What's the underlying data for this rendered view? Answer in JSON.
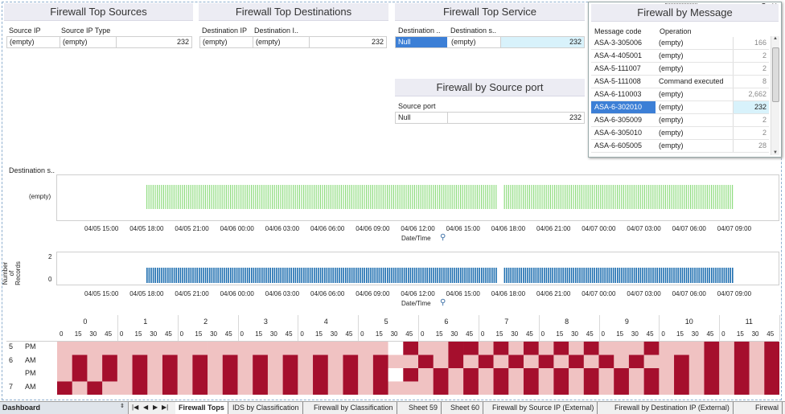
{
  "panels": {
    "top_sources": {
      "title": "Firewall Top Sources",
      "headers": [
        "Source IP",
        "Source IP Type"
      ],
      "row": {
        "c1": "(empty)",
        "c2": "(empty)",
        "value": "232"
      }
    },
    "top_destinations": {
      "title": "Firewall Top Destinations",
      "headers": [
        "Destination IP",
        "Destination I.."
      ],
      "row": {
        "c1": "(empty)",
        "c2": "(empty)",
        "value": "232"
      }
    },
    "top_service": {
      "title": "Firewall Top Service",
      "headers": [
        "Destination ..",
        "Destination s.."
      ],
      "row": {
        "c1": "Null",
        "c2": "(empty)",
        "value": "232"
      }
    },
    "source_port": {
      "title": "Firewall by Source port",
      "headers": [
        "Source port"
      ],
      "row": {
        "c1": "Null",
        "value": "232"
      }
    },
    "by_message": {
      "title": "Firewall by Message",
      "headers": [
        "Message code",
        "Operation"
      ],
      "rows": [
        {
          "code": "ASA-3-305006",
          "op": "(empty)",
          "value": "166"
        },
        {
          "code": "ASA-4-405001",
          "op": "(empty)",
          "value": "2"
        },
        {
          "code": "ASA-5-111007",
          "op": "(empty)",
          "value": "2"
        },
        {
          "code": "ASA-5-111008",
          "op": "Command executed",
          "value": "8"
        },
        {
          "code": "ASA-6-110003",
          "op": "(empty)",
          "value": "2,662"
        },
        {
          "code": "ASA-6-302010",
          "op": "(empty)",
          "value": "232"
        },
        {
          "code": "ASA-6-305009",
          "op": "(empty)",
          "value": "2"
        },
        {
          "code": "ASA-6-305010",
          "op": "(empty)",
          "value": "2"
        },
        {
          "code": "ASA-6-605005",
          "op": "(empty)",
          "value": "28"
        }
      ],
      "selected_index": 5
    }
  },
  "timeline": {
    "header": "Destination s..",
    "row_label": "(empty)",
    "ticks": [
      "04/05 15:00",
      "04/05 18:00",
      "04/05 21:00",
      "04/06 00:00",
      "04/06 03:00",
      "04/06 06:00",
      "04/06 09:00",
      "04/06 12:00",
      "04/06 15:00",
      "04/06 18:00",
      "04/06 21:00",
      "04/07 00:00",
      "04/07 03:00",
      "04/07 06:00",
      "04/07 09:00"
    ],
    "xlabel": "Date/Time",
    "bar_color": "#8fdc7f"
  },
  "records": {
    "ylabel_lines": [
      "Number",
      "of",
      "Records"
    ],
    "yticks": [
      "2",
      "0"
    ],
    "ticks": [
      "04/05 15:00",
      "04/05 18:00",
      "04/05 21:00",
      "04/06 00:00",
      "04/06 03:00",
      "04/06 06:00",
      "04/06 09:00",
      "04/06 12:00",
      "04/06 15:00",
      "04/06 18:00",
      "04/06 21:00",
      "04/07 00:00",
      "04/07 03:00",
      "04/07 06:00",
      "04/07 09:00"
    ],
    "xlabel": "Date/Time",
    "bar_color": "#1f6fb0"
  },
  "heatmap": {
    "hours": [
      "0",
      "1",
      "2",
      "3",
      "4",
      "5",
      "6",
      "7",
      "8",
      "9",
      "10",
      "11"
    ],
    "minutes": [
      "0",
      "15",
      "30",
      "45"
    ],
    "row_labels": [
      {
        "hour": "5",
        "ampm": "PM"
      },
      {
        "hour": "6",
        "ampm": "AM"
      },
      {
        "hour": "",
        "ampm": "PM"
      },
      {
        "hour": "7",
        "ampm": "AM"
      }
    ],
    "rows": [
      "LLLLLLLLLLLLLLLLLLLLLLEDLLDDLDLDLDLDLLLDLLLDLDLD",
      "LDLDLDLDLDLDLDLDLDLDLDLLDLDLDLDLDLDLDLDLLDLDLDLD",
      "LDLDLDLDLDLDLDLDLDLDLDEDLDLDLDLDLDLDLDLDLDLDLDLD",
      "DLDLLDLDLDLDLDLDLDLDLDLLLDLDLDLDLDLDLDLDLDLDLDLD"
    ],
    "colors": {
      "D": "#a50f2d",
      "L": "#f0c2c2",
      "E": "#ffffff"
    }
  },
  "tabbar": {
    "sheet_name": "Dashboard",
    "tabs": [
      "Firewall Tops",
      "IDS by Classification",
      "Firewall by Classification",
      "Sheet 59",
      "Sheet 60",
      "Firewall by Source IP (External)",
      "Firewall by Destination IP (External)",
      "Firewal"
    ],
    "active": 0
  }
}
